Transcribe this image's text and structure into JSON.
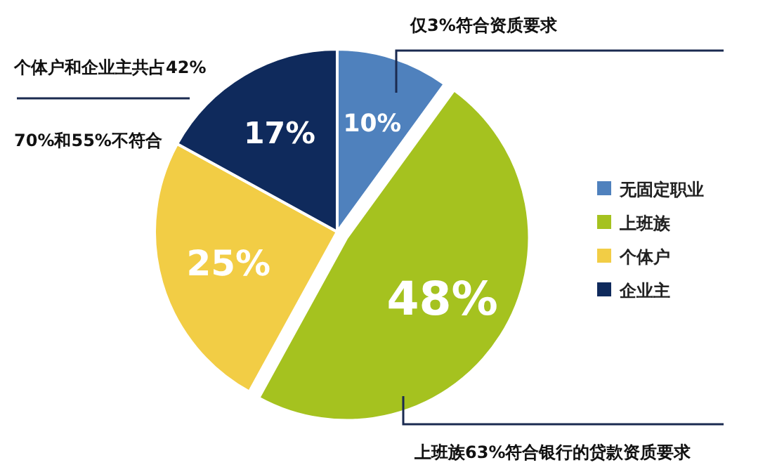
{
  "chart_data": {
    "type": "pie",
    "categories": [
      "无固定职业",
      "上班族",
      "个体户",
      "企业主"
    ],
    "values": [
      10,
      48,
      25,
      17
    ],
    "colors": [
      "#4f81bd",
      "#a5c21f",
      "#f2cd45",
      "#0f2a5c"
    ],
    "value_labels": [
      "10%",
      "48%",
      "25%",
      "17%"
    ],
    "legend": "right",
    "annotations": [
      "仅3%符合资质要求",
      "个体户和企业主共占42%",
      "70%和55%不符合",
      "上班族63%符合银行的贷款资质要求"
    ]
  }
}
